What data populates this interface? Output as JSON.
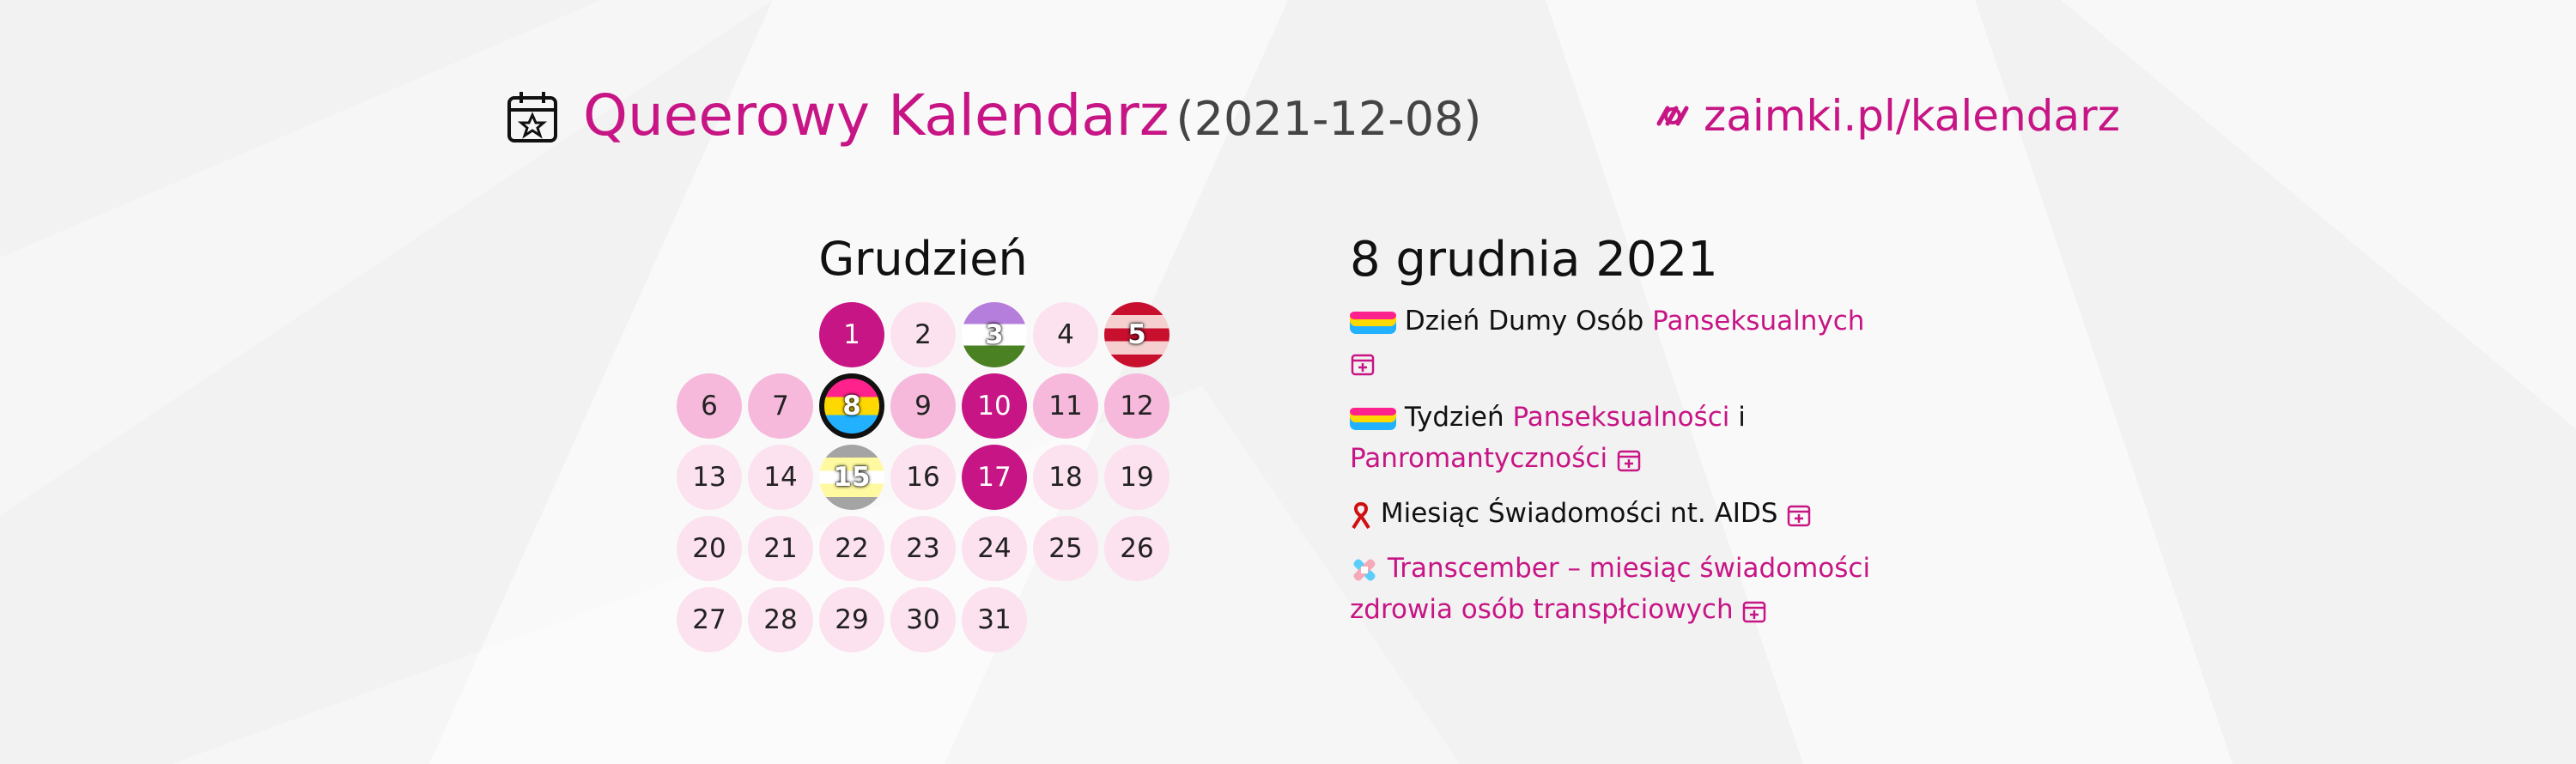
{
  "header": {
    "title": "Queerowy Kalendarz",
    "date": "(2021-12-08)",
    "link": "zaimki.pl/kalendarz"
  },
  "calendar": {
    "month": "Grudzień",
    "days": [
      {
        "day": 1,
        "colors": [
          "#c71585"
        ],
        "text_color": "#ffffff"
      },
      {
        "day": 2,
        "colors": [
          "#fce1ef"
        ]
      },
      {
        "day": 3,
        "colors": [
          "#b57edc",
          "#ffffff",
          "#4a8123"
        ],
        "text_color": "#ffffff"
      },
      {
        "day": 4,
        "colors": [
          "#fce1ef"
        ]
      },
      {
        "day": 5,
        "colors": [
          "#c8102e",
          "#f6d0d0",
          "#c8102e",
          "#f6d0d0",
          "#c8102e"
        ],
        "text_color": "#ffffff"
      },
      {
        "day": 6,
        "colors": [
          "#f6b9db"
        ]
      },
      {
        "day": 7,
        "colors": [
          "#f6b9db"
        ]
      },
      {
        "day": 8,
        "colors": [
          "#ff218c",
          "#ffd800",
          "#21b1ff"
        ],
        "text_color": "#ffffff",
        "selected": true
      },
      {
        "day": 9,
        "colors": [
          "#f6b9db"
        ]
      },
      {
        "day": 10,
        "colors": [
          "#c71585"
        ],
        "text_color": "#ffffff"
      },
      {
        "day": 11,
        "colors": [
          "#f6b9db"
        ]
      },
      {
        "day": 12,
        "colors": [
          "#f6b9db"
        ]
      },
      {
        "day": 13,
        "colors": [
          "#fce1ef"
        ]
      },
      {
        "day": 14,
        "colors": [
          "#fce1ef"
        ]
      },
      {
        "day": 15,
        "colors": [
          "#a4a4a4",
          "#fff9a0",
          "#ffffff",
          "#fff9a0",
          "#a4a4a4"
        ],
        "text_color": "#ffffff"
      },
      {
        "day": 16,
        "colors": [
          "#fce1ef"
        ]
      },
      {
        "day": 17,
        "colors": [
          "#c71585"
        ],
        "text_color": "#ffffff"
      },
      {
        "day": 18,
        "colors": [
          "#fce1ef"
        ]
      },
      {
        "day": 19,
        "colors": [
          "#fce1ef"
        ]
      },
      {
        "day": 20,
        "colors": [
          "#fce1ef"
        ]
      },
      {
        "day": 21,
        "colors": [
          "#fce1ef"
        ]
      },
      {
        "day": 22,
        "colors": [
          "#fce1ef"
        ]
      },
      {
        "day": 23,
        "colors": [
          "#fce1ef"
        ]
      },
      {
        "day": 24,
        "colors": [
          "#fce1ef"
        ]
      },
      {
        "day": 25,
        "colors": [
          "#fce1ef"
        ]
      },
      {
        "day": 26,
        "colors": [
          "#fce1ef"
        ]
      },
      {
        "day": 27,
        "colors": [
          "#fce1ef"
        ]
      },
      {
        "day": 28,
        "colors": [
          "#fce1ef"
        ]
      },
      {
        "day": 29,
        "colors": [
          "#fce1ef"
        ]
      },
      {
        "day": 30,
        "colors": [
          "#fce1ef"
        ]
      },
      {
        "day": 31,
        "colors": [
          "#fce1ef"
        ]
      }
    ]
  },
  "details": {
    "heading": "8 grudnia 2021",
    "events": [
      {
        "parts": [
          "Dzień Dumy Osób",
          "Panseksualnych"
        ]
      },
      {
        "parts": [
          "Tydzień",
          "Panseksualności",
          "i",
          "Panromantyczności"
        ]
      },
      {
        "parts": [
          "Miesiąc Świadomości nt. AIDS"
        ]
      },
      {
        "parts": [
          "Transcember – miesiąc świadomości zdrowia osób transpłciowych"
        ]
      }
    ]
  }
}
